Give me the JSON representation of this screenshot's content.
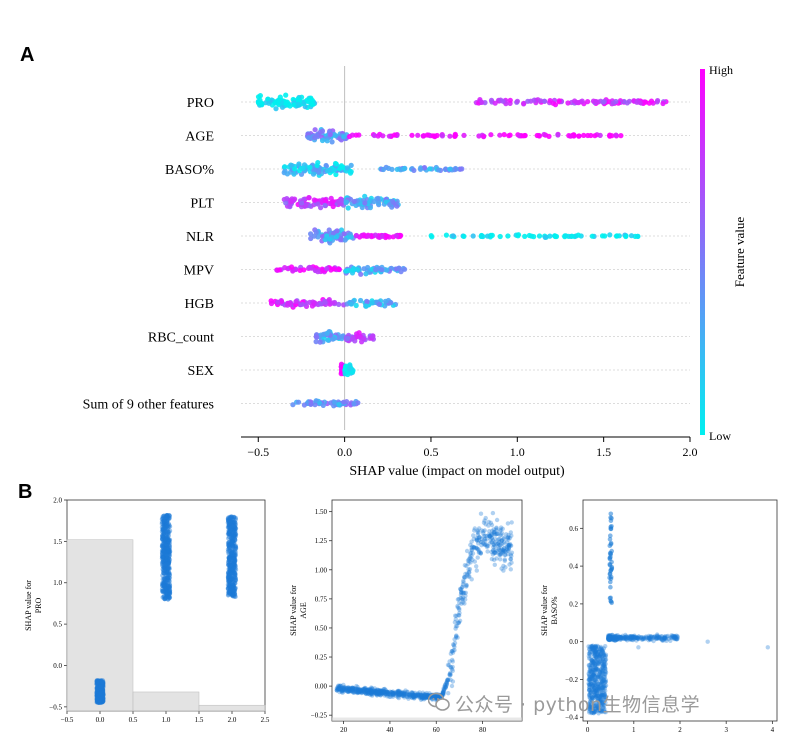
{
  "panels": {
    "a_letter": "A",
    "b_letter": "B"
  },
  "colors": {
    "low": "#00f0f0",
    "high": "#ff00ff",
    "dot_blue": "#1c7bd6"
  },
  "watermark": {
    "text": "公众号 · python生物信息学",
    "icon": "wechat-icon"
  },
  "chart_data": [
    {
      "type": "scatter",
      "subtype": "shap-beeswarm",
      "xlabel": "SHAP value (impact on model output)",
      "xlim": [
        -0.6,
        2.0
      ],
      "xticks": [
        -0.5,
        0.0,
        0.5,
        1.0,
        1.5,
        2.0
      ],
      "xtick_labels": [
        "−0.5",
        "0.0",
        "0.5",
        "1.0",
        "1.5",
        "2.0"
      ],
      "grid": false,
      "colorbar": {
        "label": "Feature value",
        "high_label": "High",
        "low_label": "Low"
      },
      "features": [
        {
          "name": "PRO",
          "clusters": [
            {
              "from": -0.5,
              "to": -0.17,
              "c": 0.0,
              "w": 1.0
            },
            {
              "from": 0.75,
              "to": 1.88,
              "c": 0.8,
              "w": 0.35
            }
          ]
        },
        {
          "name": "AGE",
          "clusters": [
            {
              "from": -0.22,
              "to": 0.02,
              "c": 0.4,
              "w": 1.0
            },
            {
              "from": 0.02,
              "to": 1.6,
              "c": 1.0,
              "w": 0.2
            }
          ]
        },
        {
          "name": "BASO%",
          "clusters": [
            {
              "from": -0.35,
              "to": 0.05,
              "c": 0.2,
              "w": 1.0
            },
            {
              "from": 0.2,
              "to": 0.68,
              "c": 0.35,
              "w": 0.3
            }
          ]
        },
        {
          "name": "PLT",
          "clusters": [
            {
              "from": -0.35,
              "to": 0.0,
              "c": 0.75,
              "w": 0.9
            },
            {
              "from": 0.0,
              "to": 0.32,
              "c": 0.3,
              "w": 0.9
            }
          ]
        },
        {
          "name": "NLR",
          "clusters": [
            {
              "from": -0.2,
              "to": 0.05,
              "c": 0.35,
              "w": 1.0
            },
            {
              "from": 0.05,
              "to": 0.33,
              "c": 1.0,
              "w": 0.3
            },
            {
              "from": 0.5,
              "to": 1.7,
              "c": 0.0,
              "w": 0.2
            }
          ]
        },
        {
          "name": "MPV",
          "clusters": [
            {
              "from": -0.4,
              "to": 0.0,
              "c": 0.85,
              "w": 0.45
            },
            {
              "from": 0.0,
              "to": 0.35,
              "c": 0.3,
              "w": 0.6
            }
          ]
        },
        {
          "name": "HGB",
          "clusters": [
            {
              "from": -0.43,
              "to": 0.0,
              "c": 0.8,
              "w": 0.55
            },
            {
              "from": 0.0,
              "to": 0.3,
              "c": 0.3,
              "w": 0.55
            }
          ]
        },
        {
          "name": "RBC_count",
          "clusters": [
            {
              "from": -0.17,
              "to": 0.0,
              "c": 0.3,
              "w": 0.8
            },
            {
              "from": 0.0,
              "to": 0.17,
              "c": 0.7,
              "w": 0.8
            }
          ]
        },
        {
          "name": "SEX",
          "clusters": [
            {
              "from": -0.02,
              "to": 0.0,
              "c": 1.0,
              "w": 0.8
            },
            {
              "from": 0.0,
              "to": 0.05,
              "c": 0.0,
              "w": 0.8
            }
          ]
        },
        {
          "name": "Sum of 9 other features",
          "clusters": [
            {
              "from": -0.3,
              "to": 0.08,
              "c": 0.4,
              "w": 0.55
            }
          ]
        }
      ]
    },
    {
      "type": "scatter",
      "subtype": "shap-dependence",
      "ylabel": "SHAP value for\nPRO",
      "xlim": [
        -0.5,
        2.5
      ],
      "ylim": [
        -0.55,
        2.0
      ],
      "xticks": [
        -0.5,
        0.0,
        0.5,
        1.0,
        1.5,
        2.0,
        2.5
      ],
      "yticks": [
        -0.5,
        0.0,
        0.5,
        1.0,
        1.5,
        2.0
      ],
      "histogram": [
        {
          "from": -0.5,
          "to": 0.5,
          "top": 1.52
        },
        {
          "from": 0.5,
          "to": 1.5,
          "top": -0.32
        },
        {
          "from": 1.5,
          "to": 2.5,
          "top": -0.48
        }
      ],
      "groups": [
        {
          "x": 0.0,
          "jitter": 0.05,
          "ymin": -0.45,
          "ymax": -0.18
        },
        {
          "x": 1.0,
          "jitter": 0.06,
          "ymin": 0.8,
          "ymax": 1.82
        },
        {
          "x": 2.0,
          "jitter": 0.06,
          "ymin": 0.82,
          "ymax": 1.8
        }
      ]
    },
    {
      "type": "scatter",
      "subtype": "shap-dependence",
      "ylabel": "SHAP value for\nAGE",
      "xlim": [
        15,
        97
      ],
      "ylim": [
        -0.3,
        1.6
      ],
      "xticks": [
        20,
        40,
        60,
        80
      ],
      "yticks": [
        -0.25,
        0.0,
        0.25,
        0.5,
        0.75,
        1.0,
        1.25,
        1.5
      ],
      "histogram_top": -0.27,
      "trend": [
        [
          17,
          -0.02
        ],
        [
          40,
          -0.06
        ],
        [
          62,
          -0.1
        ],
        [
          66,
          0.1
        ],
        [
          70,
          0.7
        ],
        [
          75,
          1.1
        ],
        [
          80,
          1.3
        ],
        [
          90,
          1.2
        ]
      ]
    },
    {
      "type": "scatter",
      "subtype": "shap-dependence",
      "ylabel": "SHAP value for\nBASO%",
      "xlim": [
        -0.1,
        4.1
      ],
      "ylim": [
        -0.42,
        0.75
      ],
      "xticks": [
        0,
        1,
        2,
        3,
        4
      ],
      "yticks": [
        -0.4,
        -0.2,
        0.0,
        0.2,
        0.4,
        0.6
      ],
      "spike": {
        "x": 0.5,
        "ymin": 0.2,
        "ymax": 0.68
      }
    }
  ]
}
